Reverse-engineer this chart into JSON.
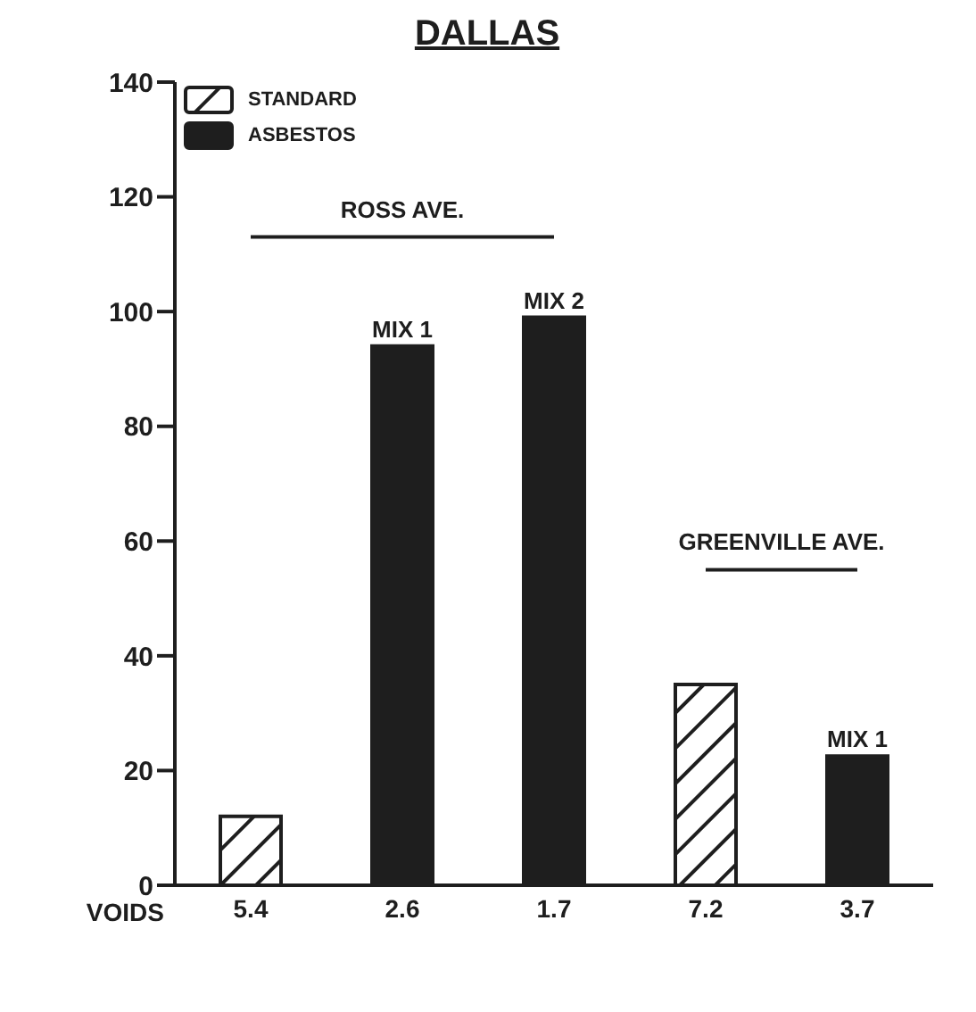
{
  "chart_data": {
    "type": "bar",
    "title": "DALLAS",
    "xlabel": "VOIDS",
    "stacked": true,
    "categories": [
      "5.4",
      "2.6",
      "1.7",
      "7.2",
      "3.7"
    ],
    "series": [
      {
        "name": "STANDARD",
        "color": "#1e1e1e",
        "values": [
          12,
          null,
          null,
          35,
          null
        ]
      },
      {
        "name": "ASBESTOS",
        "color": "#1e1e1e",
        "values": [
          null,
          94,
          99,
          null,
          22.5
        ]
      }
    ],
    "ylim": [
      0,
      140
    ],
    "yticks": [
      0,
      20,
      40,
      60,
      80,
      100,
      120,
      140
    ],
    "grid": false,
    "legend": "top left",
    "annotations": [
      "ROSS AVE.",
      "GREENVILLE AVE.",
      {
        "text": "MIX 1",
        "x": "2.6",
        "y": 94
      },
      {
        "text": "MIX 2",
        "x": "1.7",
        "y": 99
      },
      {
        "text": "MIX 1",
        "x": "3.7",
        "y": 22.5
      }
    ]
  }
}
